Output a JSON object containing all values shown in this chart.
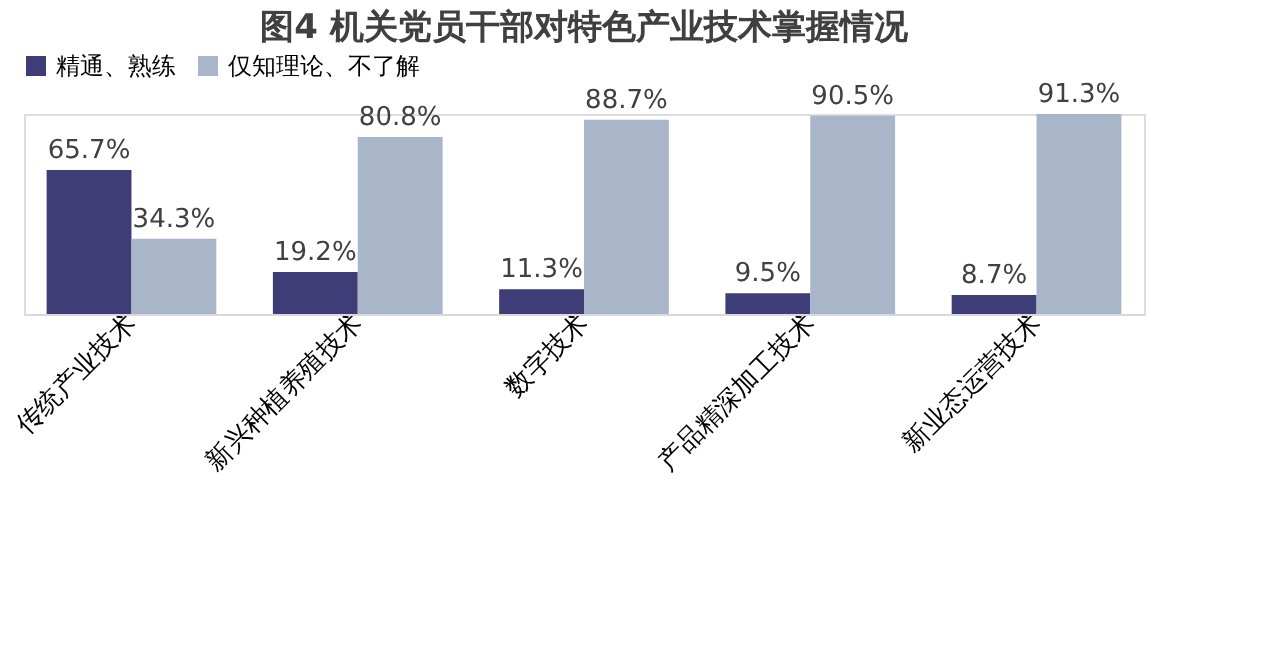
{
  "chart_data": {
    "type": "bar",
    "title": "图4 机关党员干部对特色产业技术掌握情况",
    "categories": [
      "传统产业技术",
      "新兴种植养殖技术",
      "数字技术",
      "产品精深加工技术",
      "新业态运营技术"
    ],
    "series": [
      {
        "name": "精通、熟练",
        "color": "#3f3d77",
        "values": [
          65.7,
          19.2,
          11.3,
          9.5,
          8.7
        ],
        "value_labels": [
          "65.7%",
          "19.2%",
          "11.3%",
          "9.5%",
          "8.7%"
        ]
      },
      {
        "name": "仅知理论、不了解",
        "color": "#a9b5c9",
        "values": [
          34.3,
          80.8,
          88.7,
          90.5,
          91.3
        ],
        "value_labels": [
          "34.3%",
          "80.8%",
          "88.7%",
          "90.5%",
          "91.3%"
        ]
      }
    ],
    "legend": "top",
    "grid": false,
    "tick_labels": "x"
  }
}
